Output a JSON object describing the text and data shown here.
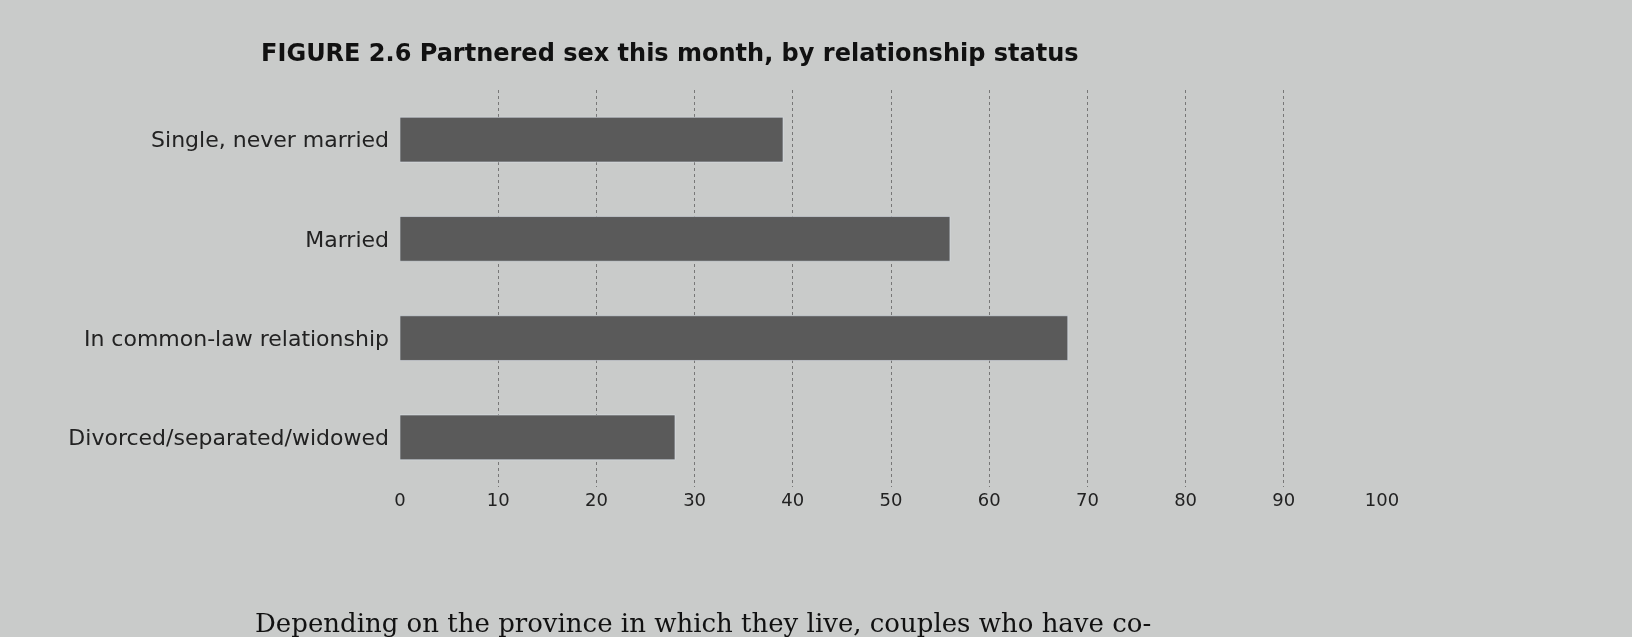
{
  "chart_data": {
    "type": "bar",
    "orientation": "horizontal",
    "title": "FIGURE 2.6 Partnered sex this month, by relationship status",
    "categories": [
      "Single, never married",
      "Married",
      "In common-law relationship",
      "Divorced/separated/widowed"
    ],
    "values": [
      39,
      56,
      68,
      28
    ],
    "color": "#5a5a5a",
    "xlim": [
      0,
      100
    ],
    "xticks": [
      0,
      10,
      20,
      30,
      40,
      50,
      60,
      70,
      80,
      90,
      100
    ],
    "grid": "x",
    "annotations": [
      "Depending on the province in which they live, couples who have co-"
    ]
  }
}
